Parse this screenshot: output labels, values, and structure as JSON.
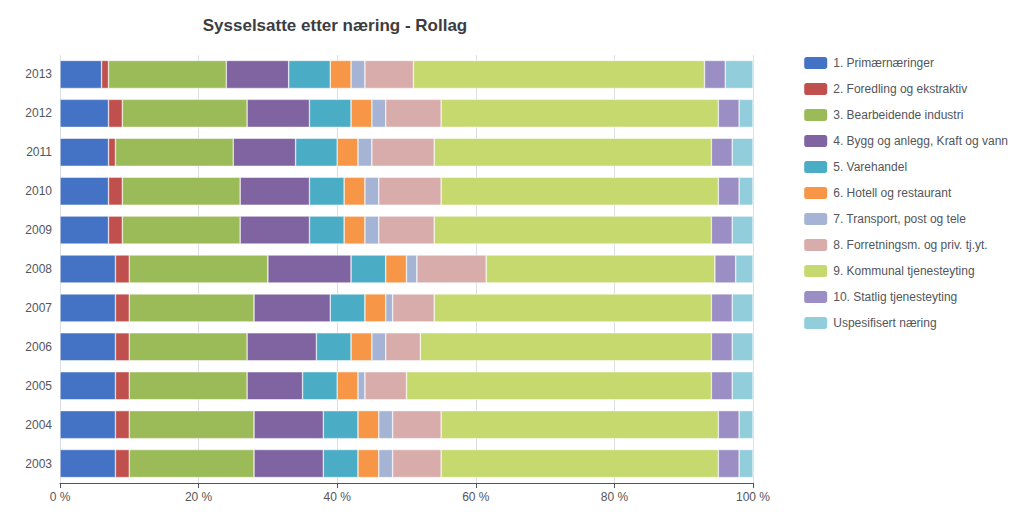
{
  "chart_data": {
    "type": "bar",
    "orientation": "horizontal",
    "stacked": true,
    "title": "Sysselsatte etter næring - Rollag",
    "categories": [
      "2003",
      "2004",
      "2005",
      "2006",
      "2007",
      "2008",
      "2009",
      "2010",
      "2011",
      "2012",
      "2013"
    ],
    "series": [
      {
        "name": "1. Primærnæringer",
        "color": "#4472C4",
        "values": [
          8.0,
          8.0,
          8.0,
          8.0,
          8.0,
          8.0,
          7.0,
          7.0,
          7.0,
          7.0,
          6.0
        ]
      },
      {
        "name": "2. Foredling og ekstraktiv",
        "color": "#C0504D",
        "values": [
          2.0,
          2.0,
          2.0,
          2.0,
          2.0,
          2.0,
          2.0,
          2.0,
          1.0,
          2.0,
          1.0
        ]
      },
      {
        "name": "3. Bearbeidende industri",
        "color": "#9BBB59",
        "values": [
          18.0,
          18.0,
          17.0,
          17.0,
          18.0,
          20.0,
          17.0,
          17.0,
          17.0,
          18.0,
          17.0
        ]
      },
      {
        "name": "4. Bygg og anlegg, Kraft og vann",
        "color": "#8064A2",
        "values": [
          10.0,
          10.0,
          8.0,
          10.0,
          11.0,
          12.0,
          10.0,
          10.0,
          9.0,
          9.0,
          9.0
        ]
      },
      {
        "name": "5. Varehandel",
        "color": "#4BACC6",
        "values": [
          5.0,
          5.0,
          5.0,
          5.0,
          5.0,
          5.0,
          5.0,
          5.0,
          6.0,
          6.0,
          6.0
        ]
      },
      {
        "name": "6. Hotell og restaurant",
        "color": "#F79646",
        "values": [
          3.0,
          3.0,
          3.0,
          3.0,
          3.0,
          3.0,
          3.0,
          3.0,
          3.0,
          3.0,
          3.0
        ]
      },
      {
        "name": "7. Transport, post og tele",
        "color": "#A5B4D4",
        "values": [
          2.0,
          2.0,
          1.0,
          2.0,
          1.0,
          1.5,
          2.0,
          2.0,
          2.0,
          2.0,
          2.0
        ]
      },
      {
        "name": "8. Forretningsm. og priv. tj.yt.",
        "color": "#D9ACAC",
        "values": [
          7.0,
          7.0,
          6.0,
          5.0,
          6.0,
          10.0,
          8.0,
          9.0,
          9.0,
          8.0,
          7.0
        ]
      },
      {
        "name": "9. Kommunal tjenesteyting",
        "color": "#C6D96F",
        "values": [
          40.0,
          40.0,
          44.0,
          42.0,
          40.0,
          33.0,
          40.0,
          40.0,
          40.0,
          40.0,
          42.0
        ]
      },
      {
        "name": "10. Statlig tjenesteyting",
        "color": "#9B8EC4",
        "values": [
          3.0,
          3.0,
          3.0,
          3.0,
          3.0,
          3.0,
          3.0,
          3.0,
          3.0,
          3.0,
          3.0
        ]
      },
      {
        "name": "Uspesifisert næring",
        "color": "#92CDDC",
        "values": [
          2.0,
          2.0,
          3.0,
          3.0,
          3.0,
          2.5,
          3.0,
          2.0,
          3.0,
          2.0,
          4.0
        ]
      }
    ],
    "xlim": [
      0,
      100
    ],
    "xticks": [
      {
        "value": 0,
        "label": "0 %"
      },
      {
        "value": 20,
        "label": "20 %"
      },
      {
        "value": 40,
        "label": "40 %"
      },
      {
        "value": 60,
        "label": "60 %"
      },
      {
        "value": 80,
        "label": "80 %"
      },
      {
        "value": 100,
        "label": "100 %"
      }
    ],
    "grid": true,
    "legend": "right"
  }
}
